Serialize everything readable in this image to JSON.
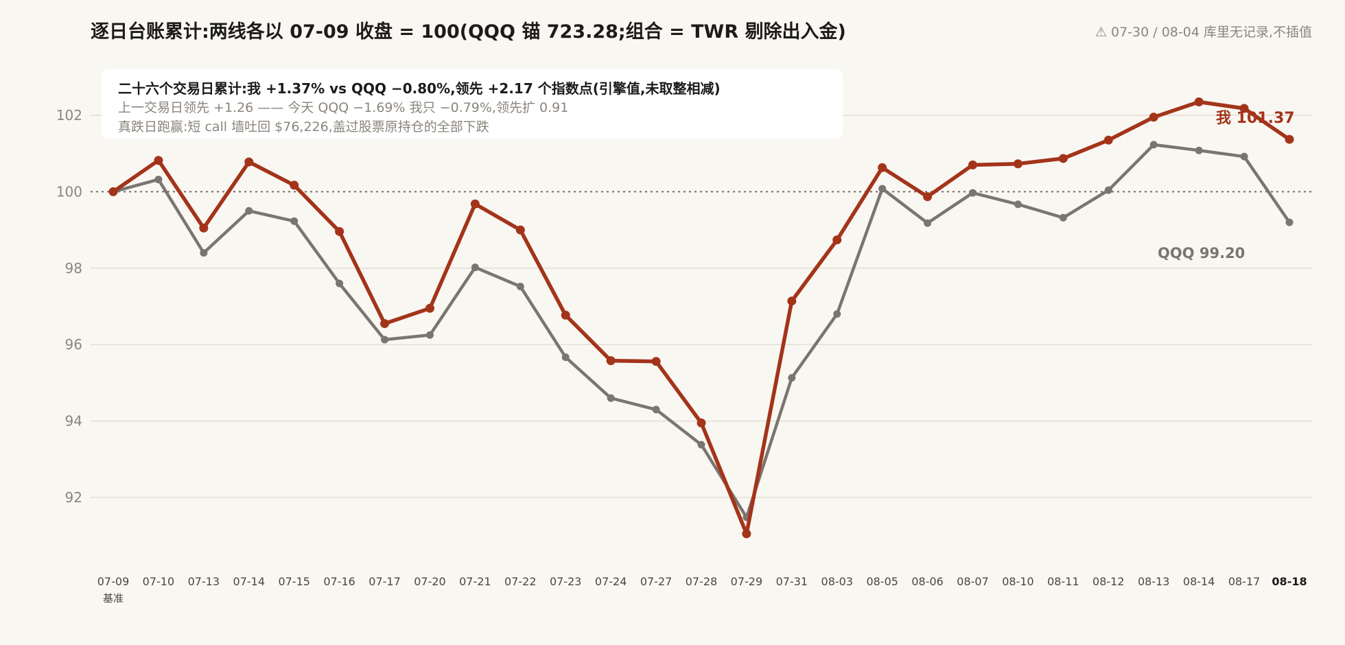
{
  "title": "逐日台账累计:两线各以 07-09 收盘 = 100(QQQ 锚 723.28;组合 = TWR 剔除出入金)",
  "warning": "⚠ 07-30 / 08-04 库里无记录,不插值",
  "summary": {
    "line1": "二十六个交易日累计:我 +1.37% vs QQQ −0.80%,领先 +2.17 个指数点(引擎值,未取整相减)",
    "line2": "上一交易日领先 +1.26 —— 今天 QQQ −1.69% 我只 −0.79%,领先扩 0.91",
    "line3": "真跌日跑赢:短 call 墙吐回 $76,226,盖过股票原持仓的全部下跌"
  },
  "colors": {
    "me": "#a3341a",
    "qqq": "#7a7570",
    "grid": "#e3ded4",
    "baseline": "#6f6a64",
    "tick": "#8a857d",
    "axis_label": "#4a4642"
  },
  "chart_data": {
    "type": "line",
    "x": [
      "07-09",
      "07-10",
      "07-13",
      "07-14",
      "07-15",
      "07-16",
      "07-17",
      "07-20",
      "07-21",
      "07-22",
      "07-23",
      "07-24",
      "07-27",
      "07-28",
      "07-29",
      "07-31",
      "08-03",
      "08-05",
      "08-06",
      "08-07",
      "08-10",
      "08-11",
      "08-12",
      "08-13",
      "08-14",
      "08-17",
      "08-18"
    ],
    "x_sublabel": {
      "index": 0,
      "text": "基准"
    },
    "x_emphasis_index": 26,
    "ylim": [
      90.5,
      103.5
    ],
    "yticks": [
      92,
      94,
      96,
      98,
      100,
      102
    ],
    "baseline": 100,
    "grid": true,
    "series": [
      {
        "name": "我",
        "key": "me",
        "values": [
          100,
          100.82,
          99.05,
          100.78,
          100.17,
          98.96,
          96.55,
          96.95,
          99.68,
          99.0,
          96.77,
          95.58,
          95.56,
          93.95,
          91.05,
          97.14,
          98.74,
          100.63,
          99.87,
          100.7,
          100.73,
          100.87,
          101.35,
          101.95,
          102.35,
          102.18,
          101.37
        ]
      },
      {
        "name": "QQQ",
        "key": "qqq",
        "values": [
          100,
          100.32,
          98.4,
          99.5,
          99.23,
          97.6,
          96.13,
          96.25,
          98.02,
          97.52,
          95.67,
          94.6,
          94.3,
          93.38,
          91.48,
          95.13,
          96.8,
          100.08,
          99.18,
          99.97,
          99.67,
          99.32,
          100.04,
          101.23,
          101.08,
          100.92,
          99.2
        ]
      }
    ],
    "end_labels": {
      "me": "我 101.37",
      "qqq": "QQQ 99.20"
    }
  }
}
